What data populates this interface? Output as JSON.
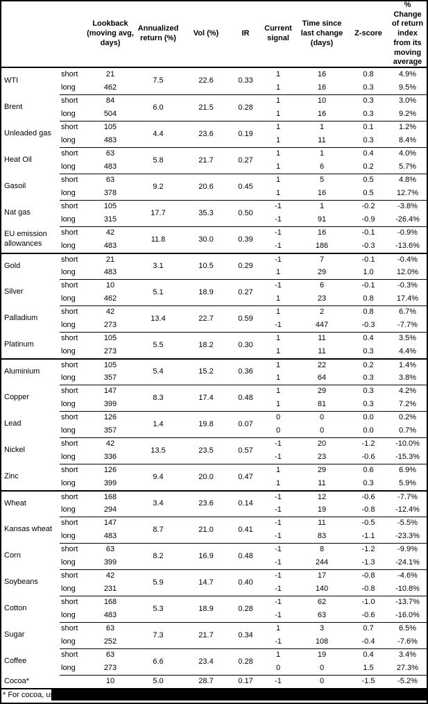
{
  "header": {
    "commodity": "",
    "leg": "",
    "lookback": "Lookback (moving avg, days)",
    "annualized": "Annualized return (%)",
    "vol": "Vol (%)",
    "ir": "IR",
    "signal": "Current signal",
    "time": "Time since last change (days)",
    "zscore": "Z-score",
    "pct": "% Change of return index from its moving average"
  },
  "groups": [
    {
      "commodities": [
        {
          "name": "WTI",
          "annualized_return": "7.5",
          "vol": "22.6",
          "ir": "0.33",
          "legs": [
            {
              "label": "short",
              "lookback": "21",
              "signal": "1",
              "days_since_change": "16",
              "z_score": "0.8",
              "pct_change": "4.9%"
            },
            {
              "label": "long",
              "lookback": "462",
              "signal": "1",
              "days_since_change": "16",
              "z_score": "0.3",
              "pct_change": "9.5%"
            }
          ]
        },
        {
          "name": "Brent",
          "annualized_return": "6.0",
          "vol": "21.5",
          "ir": "0.28",
          "legs": [
            {
              "label": "short",
              "lookback": "84",
              "signal": "1",
              "days_since_change": "10",
              "z_score": "0.3",
              "pct_change": "3.0%"
            },
            {
              "label": "long",
              "lookback": "504",
              "signal": "1",
              "days_since_change": "16",
              "z_score": "0.3",
              "pct_change": "9.2%"
            }
          ]
        },
        {
          "name": "Unleaded gas",
          "annualized_return": "4.4",
          "vol": "23.6",
          "ir": "0.19",
          "legs": [
            {
              "label": "short",
              "lookback": "105",
              "signal": "1",
              "days_since_change": "1",
              "z_score": "0.1",
              "pct_change": "1.2%"
            },
            {
              "label": "long",
              "lookback": "483",
              "signal": "1",
              "days_since_change": "11",
              "z_score": "0.3",
              "pct_change": "8.4%"
            }
          ]
        },
        {
          "name": "Heat Oil",
          "annualized_return": "5.8",
          "vol": "21.7",
          "ir": "0.27",
          "legs": [
            {
              "label": "short",
              "lookback": "63",
              "signal": "1",
              "days_since_change": "1",
              "z_score": "0.4",
              "pct_change": "4.0%"
            },
            {
              "label": "long",
              "lookback": "483",
              "signal": "1",
              "days_since_change": "6",
              "z_score": "0.2",
              "pct_change": "5.7%"
            }
          ]
        },
        {
          "name": "Gasoil",
          "annualized_return": "9.2",
          "vol": "20.6",
          "ir": "0.45",
          "legs": [
            {
              "label": "short",
              "lookback": "63",
              "signal": "1",
              "days_since_change": "5",
              "z_score": "0.5",
              "pct_change": "4.8%"
            },
            {
              "label": "long",
              "lookback": "378",
              "signal": "1",
              "days_since_change": "16",
              "z_score": "0.5",
              "pct_change": "12.7%"
            }
          ]
        },
        {
          "name": "Nat gas",
          "annualized_return": "17.7",
          "vol": "35.3",
          "ir": "0.50",
          "legs": [
            {
              "label": "short",
              "lookback": "105",
              "signal": "-1",
              "days_since_change": "1",
              "z_score": "-0.2",
              "pct_change": "-3.8%"
            },
            {
              "label": "long",
              "lookback": "315",
              "signal": "-1",
              "days_since_change": "91",
              "z_score": "-0.9",
              "pct_change": "-26.4%"
            }
          ]
        },
        {
          "name": "EU emission allowances",
          "annualized_return": "11.8",
          "vol": "30.0",
          "ir": "0.39",
          "legs": [
            {
              "label": "short",
              "lookback": "42",
              "signal": "-1",
              "days_since_change": "16",
              "z_score": "-0.1",
              "pct_change": "-0.9%"
            },
            {
              "label": "long",
              "lookback": "483",
              "signal": "-1",
              "days_since_change": "186",
              "z_score": "-0.3",
              "pct_change": "-13.6%"
            }
          ]
        }
      ]
    },
    {
      "commodities": [
        {
          "name": "Gold",
          "annualized_return": "3.1",
          "vol": "10.5",
          "ir": "0.29",
          "legs": [
            {
              "label": "short",
              "lookback": "21",
              "signal": "-1",
              "days_since_change": "7",
              "z_score": "-0.1",
              "pct_change": "-0.4%"
            },
            {
              "label": "long",
              "lookback": "483",
              "signal": "1",
              "days_since_change": "29",
              "z_score": "1.0",
              "pct_change": "12.0%"
            }
          ]
        },
        {
          "name": "Silver",
          "annualized_return": "5.1",
          "vol": "18.9",
          "ir": "0.27",
          "legs": [
            {
              "label": "short",
              "lookback": "10",
              "signal": "-1",
              "days_since_change": "6",
              "z_score": "-0.1",
              "pct_change": "-0.3%"
            },
            {
              "label": "long",
              "lookback": "462",
              "signal": "1",
              "days_since_change": "23",
              "z_score": "0.8",
              "pct_change": "17.4%"
            }
          ]
        },
        {
          "name": "Palladium",
          "annualized_return": "13.4",
          "vol": "22.7",
          "ir": "0.59",
          "legs": [
            {
              "label": "short",
              "lookback": "42",
              "signal": "1",
              "days_since_change": "2",
              "z_score": "0.8",
              "pct_change": "6.7%"
            },
            {
              "label": "long",
              "lookback": "273",
              "signal": "-1",
              "days_since_change": "447",
              "z_score": "-0.3",
              "pct_change": "-7.7%"
            }
          ]
        },
        {
          "name": "Platinum",
          "annualized_return": "5.5",
          "vol": "18.2",
          "ir": "0.30",
          "legs": [
            {
              "label": "short",
              "lookback": "105",
              "signal": "1",
              "days_since_change": "11",
              "z_score": "0.4",
              "pct_change": "3.5%"
            },
            {
              "label": "long",
              "lookback": "273",
              "signal": "1",
              "days_since_change": "11",
              "z_score": "0.3",
              "pct_change": "4.4%"
            }
          ]
        }
      ]
    },
    {
      "commodities": [
        {
          "name": "Aluminium",
          "annualized_return": "5.4",
          "vol": "15.2",
          "ir": "0.36",
          "legs": [
            {
              "label": "short",
              "lookback": "105",
              "signal": "1",
              "days_since_change": "22",
              "z_score": "0.2",
              "pct_change": "1.4%"
            },
            {
              "label": "long",
              "lookback": "357",
              "signal": "1",
              "days_since_change": "64",
              "z_score": "0.3",
              "pct_change": "3.8%"
            }
          ]
        },
        {
          "name": "Copper",
          "annualized_return": "8.3",
          "vol": "17.4",
          "ir": "0.48",
          "legs": [
            {
              "label": "short",
              "lookback": "147",
              "signal": "1",
              "days_since_change": "29",
              "z_score": "0.3",
              "pct_change": "4.2%"
            },
            {
              "label": "long",
              "lookback": "399",
              "signal": "1",
              "days_since_change": "81",
              "z_score": "0.3",
              "pct_change": "7.2%"
            }
          ]
        },
        {
          "name": "Lead",
          "annualized_return": "1.4",
          "vol": "19.8",
          "ir": "0.07",
          "legs": [
            {
              "label": "short",
              "lookback": "126",
              "signal": "0",
              "days_since_change": "0",
              "z_score": "0.0",
              "pct_change": "0.2%"
            },
            {
              "label": "long",
              "lookback": "357",
              "signal": "0",
              "days_since_change": "0",
              "z_score": "0.0",
              "pct_change": "0.7%"
            }
          ]
        },
        {
          "name": "Nickel",
          "annualized_return": "13.5",
          "vol": "23.5",
          "ir": "0.57",
          "legs": [
            {
              "label": "short",
              "lookback": "42",
              "signal": "-1",
              "days_since_change": "20",
              "z_score": "-1.2",
              "pct_change": "-10.0%"
            },
            {
              "label": "long",
              "lookback": "336",
              "signal": "-1",
              "days_since_change": "23",
              "z_score": "-0.6",
              "pct_change": "-15.3%"
            }
          ]
        },
        {
          "name": "Zinc",
          "annualized_return": "9.4",
          "vol": "20.0",
          "ir": "0.47",
          "legs": [
            {
              "label": "short",
              "lookback": "126",
              "signal": "1",
              "days_since_change": "29",
              "z_score": "0.6",
              "pct_change": "6.9%"
            },
            {
              "label": "long",
              "lookback": "399",
              "signal": "1",
              "days_since_change": "11",
              "z_score": "0.3",
              "pct_change": "5.9%"
            }
          ]
        }
      ]
    },
    {
      "commodities": [
        {
          "name": "Wheat",
          "annualized_return": "3.4",
          "vol": "23.6",
          "ir": "0.14",
          "legs": [
            {
              "label": "short",
              "lookback": "168",
              "signal": "-1",
              "days_since_change": "12",
              "z_score": "-0.6",
              "pct_change": "-7.7%"
            },
            {
              "label": "long",
              "lookback": "294",
              "signal": "-1",
              "days_since_change": "19",
              "z_score": "-0.8",
              "pct_change": "-12.4%"
            }
          ]
        },
        {
          "name": "Kansas wheat",
          "annualized_return": "8.7",
          "vol": "21.0",
          "ir": "0.41",
          "legs": [
            {
              "label": "short",
              "lookback": "147",
              "signal": "-1",
              "days_since_change": "11",
              "z_score": "-0.5",
              "pct_change": "-5.5%"
            },
            {
              "label": "long",
              "lookback": "483",
              "signal": "-1",
              "days_since_change": "83",
              "z_score": "-1.1",
              "pct_change": "-23.3%"
            }
          ]
        },
        {
          "name": "Corn",
          "annualized_return": "8.2",
          "vol": "16.9",
          "ir": "0.48",
          "legs": [
            {
              "label": "short",
              "lookback": "63",
              "signal": "-1",
              "days_since_change": "8",
              "z_score": "-1.2",
              "pct_change": "-9.9%"
            },
            {
              "label": "long",
              "lookback": "399",
              "signal": "-1",
              "days_since_change": "244",
              "z_score": "-1.3",
              "pct_change": "-24.1%"
            }
          ]
        },
        {
          "name": "Soybeans",
          "annualized_return": "5.9",
          "vol": "14.7",
          "ir": "0.40",
          "legs": [
            {
              "label": "short",
              "lookback": "42",
              "signal": "-1",
              "days_since_change": "17",
              "z_score": "-0.8",
              "pct_change": "-4.6%"
            },
            {
              "label": "long",
              "lookback": "231",
              "signal": "-1",
              "days_since_change": "140",
              "z_score": "-0.8",
              "pct_change": "-10.8%"
            }
          ]
        },
        {
          "name": "Cotton",
          "annualized_return": "5.3",
          "vol": "18.9",
          "ir": "0.28",
          "legs": [
            {
              "label": "short",
              "lookback": "168",
              "signal": "-1",
              "days_since_change": "62",
              "z_score": "-1.0",
              "pct_change": "-13.7%"
            },
            {
              "label": "long",
              "lookback": "483",
              "signal": "-1",
              "days_since_change": "63",
              "z_score": "-0.6",
              "pct_change": "-16.0%"
            }
          ]
        },
        {
          "name": "Sugar",
          "annualized_return": "7.3",
          "vol": "21.7",
          "ir": "0.34",
          "legs": [
            {
              "label": "short",
              "lookback": "63",
              "signal": "1",
              "days_since_change": "3",
              "z_score": "0.7",
              "pct_change": "6.5%"
            },
            {
              "label": "long",
              "lookback": "252",
              "signal": "-1",
              "days_since_change": "108",
              "z_score": "-0.4",
              "pct_change": "-7.6%"
            }
          ]
        },
        {
          "name": "Coffee",
          "annualized_return": "6.6",
          "vol": "23.4",
          "ir": "0.28",
          "legs": [
            {
              "label": "short",
              "lookback": "63",
              "signal": "1",
              "days_since_change": "19",
              "z_score": "0.4",
              "pct_change": "3.4%"
            },
            {
              "label": "long",
              "lookback": "273",
              "signal": "0",
              "days_since_change": "0",
              "z_score": "1.5",
              "pct_change": "27.3%"
            }
          ]
        },
        {
          "name": "Cocoa*",
          "annualized_return": "5.0",
          "vol": "28.7",
          "ir": "0.17",
          "legs": [
            {
              "label": "",
              "lookback": "10",
              "signal": "-1",
              "days_since_change": "0",
              "z_score": "-1.5",
              "pct_change": "-5.2%"
            }
          ]
        }
      ]
    }
  ],
  "footnote": "* For cocoa, uses",
  "colors": {
    "text": "#000000",
    "background": "#ffffff",
    "rule": "#000000",
    "redaction": "#000000"
  }
}
